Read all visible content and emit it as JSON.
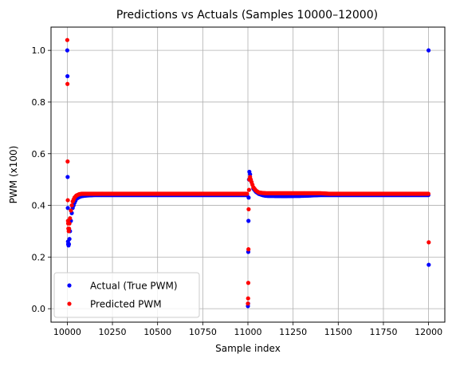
{
  "chart_data": {
    "type": "scatter",
    "title": "Predictions vs Actuals (Samples 10000–12000)",
    "xlabel": "Sample index",
    "ylabel": "PWM (x100)",
    "xlim": [
      9910,
      12090
    ],
    "ylim": [
      -0.052,
      1.09
    ],
    "xticks": [
      10000,
      10250,
      10500,
      10750,
      11000,
      11250,
      11500,
      11750,
      12000
    ],
    "xtick_labels": [
      "10000",
      "10250",
      "10500",
      "10750",
      "11000",
      "11250",
      "11500",
      "11750",
      "12000"
    ],
    "yticks": [
      0.0,
      0.2,
      0.4,
      0.6,
      0.8,
      1.0
    ],
    "ytick_labels": [
      "0.0",
      "0.2",
      "0.4",
      "0.6",
      "0.8",
      "1.0"
    ],
    "grid": true,
    "legend_position": "lower-left",
    "series": [
      {
        "name": "Actual (True PWM)",
        "color": "#0000ff",
        "points": [
          [
            10000,
            1.0
          ],
          [
            10001,
            0.9
          ],
          [
            10002,
            0.51
          ],
          [
            10003,
            0.39
          ],
          [
            10004,
            0.26
          ],
          [
            10005,
            0.25
          ],
          [
            10007,
            0.245
          ],
          [
            10009,
            0.25
          ],
          [
            10012,
            0.27
          ],
          [
            10015,
            0.3
          ],
          [
            10020,
            0.34
          ],
          [
            10025,
            0.37
          ],
          [
            10030,
            0.39
          ],
          [
            10040,
            0.41
          ],
          [
            10050,
            0.425
          ],
          [
            10065,
            0.432
          ],
          [
            10080,
            0.436
          ],
          [
            10100,
            0.438
          ],
          [
            10150,
            0.44
          ],
          [
            10200,
            0.44
          ],
          [
            10300,
            0.44
          ],
          [
            10400,
            0.44
          ],
          [
            10500,
            0.44
          ],
          [
            10600,
            0.44
          ],
          [
            10700,
            0.44
          ],
          [
            10800,
            0.44
          ],
          [
            10900,
            0.44
          ],
          [
            10995,
            0.44
          ],
          [
            11000,
            0.01
          ],
          [
            11001,
            0.02
          ],
          [
            11002,
            0.22
          ],
          [
            11003,
            0.34
          ],
          [
            11004,
            0.43
          ],
          [
            11006,
            0.5
          ],
          [
            11008,
            0.53
          ],
          [
            11012,
            0.52
          ],
          [
            11020,
            0.49
          ],
          [
            11030,
            0.465
          ],
          [
            11045,
            0.452
          ],
          [
            11060,
            0.445
          ],
          [
            11080,
            0.44
          ],
          [
            11100,
            0.437
          ],
          [
            11200,
            0.436
          ],
          [
            11300,
            0.437
          ],
          [
            11400,
            0.44
          ],
          [
            11500,
            0.44
          ],
          [
            11600,
            0.44
          ],
          [
            11700,
            0.44
          ],
          [
            11800,
            0.44
          ],
          [
            11900,
            0.44
          ],
          [
            11995,
            0.44
          ],
          [
            11999,
            0.44
          ],
          [
            12000,
            1.0
          ],
          [
            12001,
            0.17
          ]
        ]
      },
      {
        "name": "Predicted PWM",
        "color": "#ff0000",
        "points": [
          [
            10000,
            1.04
          ],
          [
            10001,
            0.87
          ],
          [
            10002,
            0.57
          ],
          [
            10003,
            0.42
          ],
          [
            10004,
            0.34
          ],
          [
            10005,
            0.33
          ],
          [
            10006,
            0.31
          ],
          [
            10008,
            0.3
          ],
          [
            10010,
            0.31
          ],
          [
            10012,
            0.33
          ],
          [
            10015,
            0.35
          ],
          [
            10020,
            0.38
          ],
          [
            10025,
            0.4
          ],
          [
            10030,
            0.415
          ],
          [
            10040,
            0.43
          ],
          [
            10050,
            0.438
          ],
          [
            10065,
            0.443
          ],
          [
            10080,
            0.445
          ],
          [
            10100,
            0.445
          ],
          [
            10200,
            0.445
          ],
          [
            10300,
            0.445
          ],
          [
            10400,
            0.445
          ],
          [
            10500,
            0.445
          ],
          [
            10600,
            0.445
          ],
          [
            10700,
            0.445
          ],
          [
            10800,
            0.445
          ],
          [
            10900,
            0.445
          ],
          [
            10995,
            0.445
          ],
          [
            11000,
            0.02
          ],
          [
            11001,
            0.04
          ],
          [
            11002,
            0.1
          ],
          [
            11003,
            0.23
          ],
          [
            11004,
            0.385
          ],
          [
            11006,
            0.46
          ],
          [
            11008,
            0.5
          ],
          [
            11012,
            0.51
          ],
          [
            11020,
            0.49
          ],
          [
            11030,
            0.47
          ],
          [
            11045,
            0.457
          ],
          [
            11060,
            0.45
          ],
          [
            11080,
            0.448
          ],
          [
            11100,
            0.447
          ],
          [
            11200,
            0.447
          ],
          [
            11300,
            0.447
          ],
          [
            11400,
            0.447
          ],
          [
            11450,
            0.445
          ],
          [
            11500,
            0.445
          ],
          [
            11600,
            0.445
          ],
          [
            11700,
            0.445
          ],
          [
            11800,
            0.445
          ],
          [
            11900,
            0.445
          ],
          [
            11995,
            0.445
          ],
          [
            11999,
            0.445
          ],
          [
            12001,
            0.257
          ]
        ]
      }
    ]
  }
}
